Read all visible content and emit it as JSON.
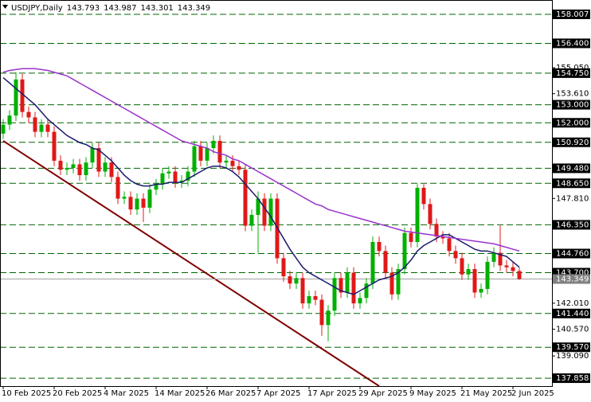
{
  "chart_data": {
    "type": "candlestick",
    "title": "USDJPY,Daily",
    "categories": [
      "10 Feb 2025",
      null,
      null,
      null,
      null,
      null,
      null,
      null,
      "20 Feb 2025",
      null,
      null,
      null,
      null,
      null,
      null,
      null,
      "4 Mar 2025",
      null,
      null,
      null,
      null,
      null,
      null,
      null,
      "14 Mar 2025",
      null,
      null,
      null,
      null,
      null,
      null,
      null,
      "26 Mar 2025",
      null,
      null,
      null,
      null,
      null,
      null,
      null,
      "7 Apr 2025",
      null,
      null,
      null,
      null,
      null,
      null,
      null,
      "17 Apr 2025",
      null,
      null,
      null,
      null,
      null,
      null,
      null,
      "29 Apr 2025",
      null,
      null,
      null,
      null,
      null,
      null,
      null,
      "9 May 2025",
      null,
      null,
      null,
      null,
      null,
      null,
      null,
      "21 May 2025",
      null,
      null,
      null,
      null,
      null,
      null,
      null,
      "2 Jun 2025",
      null
    ],
    "open": [
      151.4,
      151.9,
      152.4,
      154.4,
      152.6,
      152.3,
      151.5,
      151.9,
      151.5,
      149.9,
      149.4,
      149.5,
      149.7,
      149.1,
      149.8,
      150.6,
      149.3,
      149.8,
      149.0,
      147.8,
      147.9,
      147.2,
      147.8,
      147.3,
      148.3,
      148.6,
      149.2,
      149.3,
      148.7,
      148.8,
      149.3,
      150.7,
      149.9,
      150.6,
      151.0,
      149.8,
      149.9,
      149.6,
      149.4,
      146.3,
      146.9,
      147.8,
      146.3,
      147.8,
      144.5,
      143.5,
      143.1,
      143.4,
      142.0,
      142.4,
      142.2,
      140.8,
      141.6,
      143.4,
      142.6,
      143.7,
      142.0,
      142.3,
      143.1,
      145.4,
      144.9,
      143.7,
      142.5,
      143.9,
      145.9,
      145.4,
      148.4,
      147.5,
      146.4,
      145.7,
      145.6,
      144.9,
      144.5,
      143.6,
      143.9,
      142.6,
      142.8,
      144.3,
      144.8,
      144.1,
      144.0,
      143.793
    ],
    "high": [
      152.2,
      152.7,
      154.8,
      154.7,
      152.9,
      152.6,
      152.2,
      152.2,
      151.8,
      150.2,
      149.8,
      150.0,
      150.0,
      150.1,
      150.9,
      150.9,
      150.1,
      150.1,
      149.3,
      148.2,
      148.2,
      148.1,
      148.1,
      148.6,
      148.9,
      149.5,
      149.6,
      149.6,
      149.1,
      149.6,
      151.0,
      151.0,
      150.9,
      151.3,
      151.3,
      150.2,
      150.2,
      149.9,
      149.7,
      147.2,
      148.2,
      148.1,
      148.1,
      148.1,
      144.8,
      143.8,
      143.7,
      143.7,
      142.7,
      142.7,
      142.5,
      141.9,
      143.7,
      143.7,
      144.0,
      144.0,
      142.6,
      143.4,
      145.7,
      145.7,
      145.2,
      144.0,
      144.2,
      146.2,
      146.2,
      148.6,
      148.6,
      147.8,
      146.7,
      146.0,
      145.9,
      145.2,
      144.8,
      144.2,
      144.2,
      143.1,
      144.6,
      145.1,
      146.3,
      144.4,
      144.3,
      143.987
    ],
    "low": [
      151.1,
      151.6,
      152.1,
      152.3,
      152.0,
      151.2,
      151.2,
      151.2,
      149.6,
      149.1,
      149.1,
      149.2,
      148.8,
      148.8,
      149.5,
      149.0,
      149.0,
      148.7,
      147.5,
      147.5,
      146.9,
      146.9,
      146.5,
      147.0,
      148.0,
      148.3,
      148.9,
      148.4,
      148.4,
      148.5,
      149.0,
      149.6,
      149.6,
      150.3,
      149.5,
      149.5,
      149.3,
      149.1,
      146.0,
      146.0,
      144.8,
      146.0,
      146.0,
      144.2,
      143.2,
      142.8,
      142.8,
      141.7,
      141.7,
      141.9,
      140.2,
      139.9,
      141.3,
      142.3,
      142.3,
      141.7,
      141.7,
      142.0,
      142.8,
      144.6,
      143.4,
      142.2,
      142.2,
      143.6,
      145.1,
      145.1,
      147.2,
      146.1,
      145.4,
      145.3,
      144.6,
      144.2,
      143.3,
      143.3,
      142.3,
      142.3,
      142.5,
      144.0,
      143.8,
      143.7,
      143.5,
      143.301
    ],
    "close": [
      151.9,
      152.4,
      154.4,
      152.6,
      152.3,
      151.5,
      151.9,
      151.5,
      149.9,
      149.4,
      149.5,
      149.7,
      149.1,
      149.8,
      150.6,
      149.3,
      149.8,
      149.0,
      147.8,
      147.9,
      147.2,
      147.8,
      147.3,
      148.3,
      148.6,
      149.2,
      149.3,
      148.7,
      148.8,
      149.3,
      150.7,
      149.9,
      150.6,
      151.0,
      149.8,
      149.9,
      149.6,
      149.4,
      146.3,
      146.9,
      147.8,
      146.3,
      147.8,
      144.5,
      143.5,
      143.1,
      143.4,
      142.0,
      142.4,
      142.2,
      140.8,
      141.6,
      143.4,
      142.6,
      143.7,
      142.0,
      142.3,
      143.1,
      145.4,
      144.9,
      143.7,
      142.5,
      143.9,
      145.9,
      145.4,
      148.4,
      147.5,
      146.4,
      145.7,
      145.6,
      144.9,
      144.5,
      143.6,
      143.9,
      142.6,
      142.8,
      144.3,
      144.8,
      144.1,
      144.0,
      143.79,
      143.349
    ],
    "up_color": "#00b000",
    "down_color": "#e01818",
    "lines": [
      {
        "color": "#1a1a6e",
        "values": [
          154.5,
          154.2,
          153.9,
          153.6,
          153.3,
          153.0,
          152.6,
          152.2,
          151.9,
          151.6,
          151.3,
          151.1,
          150.9,
          150.8,
          150.6,
          150.5,
          150.2,
          149.9,
          149.5,
          149.1,
          148.8,
          148.6,
          148.5,
          148.5,
          148.6,
          148.6,
          148.7,
          148.7,
          148.7,
          148.9,
          149.1,
          149.3,
          149.5,
          149.6,
          149.6,
          149.5,
          149.3,
          149.0,
          148.6,
          148.2,
          147.8,
          147.3,
          146.8,
          146.2,
          145.6,
          145.0,
          144.5,
          144.0,
          143.7,
          143.5,
          143.3,
          143.1,
          142.9,
          142.7,
          142.6,
          142.5,
          142.7,
          142.9,
          143.1,
          143.3,
          143.4,
          143.5,
          143.7,
          144.0,
          144.4,
          144.9,
          145.2,
          145.4,
          145.6,
          145.8,
          145.8,
          145.6,
          145.4,
          145.2,
          145.0,
          144.9,
          144.9,
          144.8,
          144.7,
          144.6,
          144.3,
          144.0
        ]
      },
      {
        "color": "#9932cc",
        "values": [
          154.8,
          154.9,
          154.95,
          155.0,
          155.0,
          155.0,
          154.95,
          154.9,
          154.8,
          154.7,
          154.6,
          154.4,
          154.2,
          154.0,
          153.8,
          153.6,
          153.4,
          153.2,
          153.0,
          152.8,
          152.6,
          152.4,
          152.2,
          152.0,
          151.8,
          151.6,
          151.4,
          151.2,
          151.0,
          150.9,
          150.8,
          150.7,
          150.6,
          150.4,
          150.3,
          150.2,
          150.0,
          149.9,
          149.7,
          149.5,
          149.3,
          149.1,
          148.9,
          148.7,
          148.5,
          148.3,
          148.1,
          147.9,
          147.7,
          147.5,
          147.4,
          147.2,
          147.1,
          147.0,
          146.9,
          146.8,
          146.7,
          146.6,
          146.5,
          146.4,
          146.3,
          146.2,
          146.1,
          146.0,
          145.95,
          145.9,
          145.85,
          145.8,
          145.75,
          145.7,
          145.65,
          145.6,
          145.55,
          145.5,
          145.45,
          145.4,
          145.35,
          145.3,
          145.2,
          145.1,
          145.0,
          144.9
        ]
      }
    ],
    "trendline": {
      "color": "#800000",
      "x": [
        0,
        59
      ],
      "y": [
        151.0,
        137.42
      ]
    },
    "ylim": [
      137.42,
      158.8
    ],
    "yticks": [
      {
        "value": 155.05,
        "label": "155.050"
      },
      {
        "value": 153.61,
        "label": "153.610"
      },
      {
        "value": 147.81,
        "label": "147.810"
      },
      {
        "value": 142.01,
        "label": "142.010"
      },
      {
        "value": 140.57,
        "label": "140.570"
      },
      {
        "value": 139.09,
        "label": "139.090"
      }
    ],
    "levels": [
      {
        "value": 158.007,
        "label": "158.007"
      },
      {
        "value": 156.4,
        "label": "156.400"
      },
      {
        "value": 154.75,
        "label": "154.750"
      },
      {
        "value": 153.0,
        "label": "153.000"
      },
      {
        "value": 152.0,
        "label": "152.000"
      },
      {
        "value": 150.92,
        "label": "150.920"
      },
      {
        "value": 149.48,
        "label": "149.480"
      },
      {
        "value": 148.65,
        "label": "148.650"
      },
      {
        "value": 146.35,
        "label": "146.350"
      },
      {
        "value": 144.76,
        "label": "144.760"
      },
      {
        "value": 143.7,
        "label": "143.700"
      },
      {
        "value": 141.44,
        "label": "141.440"
      },
      {
        "value": 139.57,
        "label": "139.570"
      },
      {
        "value": 137.858,
        "label": "137.858"
      }
    ],
    "level_color": "#006400"
  }
}
